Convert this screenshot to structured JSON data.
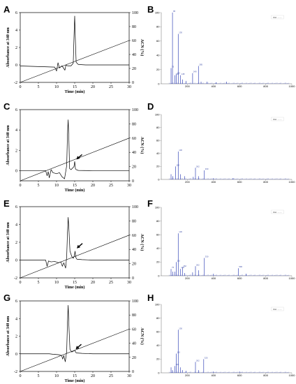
{
  "chart_data": [
    {
      "type": "line",
      "panel": "A",
      "xlabel": "Time (min)",
      "ylabel": "Absorbance at 340 nm",
      "y2label": "ACN (%)",
      "xticks": [
        "0",
        "5",
        "10",
        "15",
        "20",
        "25",
        "30"
      ],
      "yticks": [
        "-2",
        "0",
        "2",
        "4",
        "6"
      ],
      "y2ticks": [
        "0",
        "20",
        "40",
        "60",
        "80",
        "100"
      ],
      "xlim": [
        0,
        30
      ],
      "ylim": [
        -2,
        6
      ],
      "y2lim": [
        0,
        100
      ],
      "gradient": {
        "x": [
          0,
          30
        ],
        "y": [
          0,
          60
        ]
      },
      "series": [
        {
          "x": [
            0,
            6,
            9.5,
            10,
            10.4,
            10.8,
            11.5,
            12.3,
            12.6,
            13,
            14,
            14.6,
            14.9,
            15.0,
            15.1,
            15.4,
            16,
            18,
            20,
            25,
            30
          ],
          "y": [
            -0.12,
            -0.2,
            -0.25,
            -0.7,
            0.25,
            -0.35,
            -0.1,
            -0.6,
            0.0,
            -0.1,
            -0.1,
            0.2,
            4.5,
            5.6,
            4.0,
            0.3,
            0.05,
            0.0,
            0.0,
            0.0,
            0.0
          ]
        }
      ]
    },
    {
      "type": "bar",
      "panel": "B",
      "xticks": [
        "200",
        "400",
        "600",
        "800",
        "1000"
      ],
      "yticks": [
        "0",
        "20",
        "40",
        "60",
        "80",
        "100"
      ],
      "xlim": [
        0,
        1000
      ],
      "ylim": [
        0,
        100
      ],
      "legend": "Rel. .......",
      "peaks": [
        {
          "x": 75,
          "y": 22
        },
        {
          "x": 86,
          "y": 100
        },
        {
          "x": 104,
          "y": 12
        },
        {
          "x": 115,
          "y": 13
        },
        {
          "x": 130,
          "y": 70
        },
        {
          "x": 148,
          "y": 12
        },
        {
          "x": 163,
          "y": 6
        },
        {
          "x": 190,
          "y": 4
        },
        {
          "x": 240,
          "y": 15
        },
        {
          "x": 285,
          "y": 25
        },
        {
          "x": 305,
          "y": 3
        },
        {
          "x": 350,
          "y": 3
        },
        {
          "x": 420,
          "y": 2
        },
        {
          "x": 500,
          "y": 3
        }
      ]
    },
    {
      "type": "line",
      "panel": "C",
      "xlabel": "Time (min)",
      "ylabel": "Absorbance at 340 nm",
      "y2label": "ACN (%)",
      "xticks": [
        "0",
        "5",
        "10",
        "15",
        "20",
        "25",
        "30"
      ],
      "yticks": [
        "0",
        "2",
        "4",
        "6"
      ],
      "y2ticks": [
        "0",
        "20",
        "40",
        "60",
        "80",
        "100"
      ],
      "xlim": [
        0,
        30
      ],
      "ylim": [
        -1,
        6
      ],
      "y2lim": [
        0,
        100
      ],
      "gradient": {
        "x": [
          0,
          30
        ],
        "y": [
          0,
          60
        ]
      },
      "arrow_at": {
        "x": 15.2,
        "y": 1.0
      },
      "series": [
        {
          "x": [
            0,
            7.0,
            7.4,
            7.7,
            8.0,
            8.5,
            9.0,
            10.0,
            10.8,
            11.5,
            12.2,
            12.8,
            13.0,
            13.2,
            13.4,
            13.6,
            14.0,
            14.8,
            15.0,
            15.2,
            15.4,
            16,
            20,
            30
          ],
          "y": [
            0,
            0,
            -0.5,
            -0.1,
            -0.7,
            0.1,
            -0.2,
            -0.3,
            -0.2,
            -0.6,
            -0.8,
            0.5,
            3.5,
            5.0,
            3.0,
            0.2,
            0.1,
            0.4,
            0.9,
            0.2,
            0.1,
            0.02,
            0.0,
            0.0
          ]
        }
      ]
    },
    {
      "type": "bar",
      "panel": "D",
      "xticks": [
        "200",
        "400",
        "600",
        "800",
        "1000"
      ],
      "yticks": [
        "0",
        "20",
        "40",
        "60",
        "80",
        "100"
      ],
      "xlim": [
        0,
        1000
      ],
      "ylim": [
        0,
        100
      ],
      "legend": "Rel. .......",
      "peaks": [
        {
          "x": 75,
          "y": 8
        },
        {
          "x": 88,
          "y": 5
        },
        {
          "x": 110,
          "y": 20
        },
        {
          "x": 130,
          "y": 43
        },
        {
          "x": 148,
          "y": 8
        },
        {
          "x": 180,
          "y": 5
        },
        {
          "x": 245,
          "y": 4
        },
        {
          "x": 262,
          "y": 18
        },
        {
          "x": 285,
          "y": 5
        },
        {
          "x": 330,
          "y": 14
        },
        {
          "x": 400,
          "y": 2
        },
        {
          "x": 550,
          "y": 2
        }
      ]
    },
    {
      "type": "line",
      "panel": "E",
      "xlabel": "Time (min)",
      "ylabel": "Absorbance at 340 nm",
      "y2label": "ACN (%)",
      "xticks": [
        "0",
        "5",
        "10",
        "15",
        "20",
        "25",
        "30"
      ],
      "yticks": [
        "-2",
        "0",
        "2",
        "4",
        "6"
      ],
      "y2ticks": [
        "0",
        "20",
        "40",
        "60",
        "80",
        "100"
      ],
      "xlim": [
        0,
        30
      ],
      "ylim": [
        -2,
        6
      ],
      "y2lim": [
        0,
        100
      ],
      "gradient": {
        "x": [
          0,
          30
        ],
        "y": [
          0,
          60
        ]
      },
      "arrow_at": {
        "x": 15.3,
        "y": 1.2
      },
      "series": [
        {
          "x": [
            0,
            7.0,
            7.4,
            7.8,
            8.5,
            9.5,
            10.5,
            11.2,
            11.6,
            12.0,
            12.5,
            12.8,
            13.0,
            13.2,
            13.4,
            13.7,
            14.2,
            14.6,
            14.9,
            15.1,
            15.3,
            15.6,
            17,
            20,
            30
          ],
          "y": [
            0,
            0,
            -0.7,
            -0.1,
            -0.2,
            -0.15,
            -0.3,
            -0.2,
            -0.7,
            -0.3,
            -0.9,
            0.4,
            3.0,
            4.8,
            3.5,
            1.0,
            0.4,
            0.2,
            0.5,
            1.0,
            0.3,
            0.1,
            0.05,
            0.0,
            0.0
          ]
        }
      ]
    },
    {
      "type": "bar",
      "panel": "F",
      "xticks": [
        "200",
        "400",
        "600",
        "800",
        "1000"
      ],
      "yticks": [
        "0",
        "20",
        "40",
        "60",
        "80",
        "100"
      ],
      "xlim": [
        0,
        1000
      ],
      "ylim": [
        0,
        100
      ],
      "legend": "Rel. .......",
      "peaks": [
        {
          "x": 75,
          "y": 10
        },
        {
          "x": 88,
          "y": 6
        },
        {
          "x": 104,
          "y": 6
        },
        {
          "x": 115,
          "y": 20
        },
        {
          "x": 130,
          "y": 62
        },
        {
          "x": 146,
          "y": 10
        },
        {
          "x": 162,
          "y": 12
        },
        {
          "x": 180,
          "y": 4
        },
        {
          "x": 240,
          "y": 5
        },
        {
          "x": 262,
          "y": 14
        },
        {
          "x": 285,
          "y": 8
        },
        {
          "x": 330,
          "y": 26
        },
        {
          "x": 400,
          "y": 3
        },
        {
          "x": 590,
          "y": 11
        },
        {
          "x": 650,
          "y": 3
        }
      ]
    },
    {
      "type": "line",
      "panel": "G",
      "xlabel": "Time (min)",
      "ylabel": "Absorbance at 340 nm",
      "y2label": "ACN (%)",
      "xticks": [
        "0",
        "5",
        "10",
        "15",
        "20",
        "25",
        "30"
      ],
      "yticks": [
        "-2",
        "0",
        "2",
        "4",
        "6"
      ],
      "y2ticks": [
        "0",
        "20",
        "40",
        "60",
        "80",
        "100"
      ],
      "xlim": [
        0,
        30
      ],
      "ylim": [
        -2,
        6
      ],
      "y2lim": [
        0,
        100
      ],
      "gradient": {
        "x": [
          0,
          30
        ],
        "y": [
          0,
          60
        ]
      },
      "arrow_at": {
        "x": 15.0,
        "y": 0.4
      },
      "series": [
        {
          "x": [
            0,
            7.5,
            8.0,
            9.0,
            10.5,
            11.4,
            11.7,
            12.0,
            12.4,
            12.8,
            13.0,
            13.2,
            13.4,
            13.7,
            14.2,
            14.6,
            15.0,
            15.4,
            17,
            20,
            30
          ],
          "y": [
            0,
            0,
            0.0,
            -0.05,
            -0.1,
            -0.2,
            -0.6,
            -0.2,
            -0.9,
            0.3,
            3.5,
            5.5,
            3.2,
            0.5,
            0.2,
            0.3,
            0.4,
            0.1,
            0.05,
            0.0,
            0.0
          ]
        }
      ]
    },
    {
      "type": "bar",
      "panel": "H",
      "xticks": [
        "200",
        "400",
        "600",
        "800",
        "1000"
      ],
      "yticks": [
        "0",
        "20",
        "40",
        "60",
        "80",
        "100"
      ],
      "xlim": [
        0,
        1000
      ],
      "ylim": [
        0,
        100
      ],
      "legend": "Rel. .......",
      "peaks": [
        {
          "x": 75,
          "y": 8
        },
        {
          "x": 86,
          "y": 4
        },
        {
          "x": 104,
          "y": 10
        },
        {
          "x": 115,
          "y": 28
        },
        {
          "x": 130,
          "y": 63
        },
        {
          "x": 146,
          "y": 8
        },
        {
          "x": 162,
          "y": 4
        },
        {
          "x": 190,
          "y": 3
        },
        {
          "x": 262,
          "y": 16
        },
        {
          "x": 285,
          "y": 4
        },
        {
          "x": 325,
          "y": 20
        },
        {
          "x": 400,
          "y": 2
        },
        {
          "x": 600,
          "y": 2
        }
      ]
    }
  ]
}
